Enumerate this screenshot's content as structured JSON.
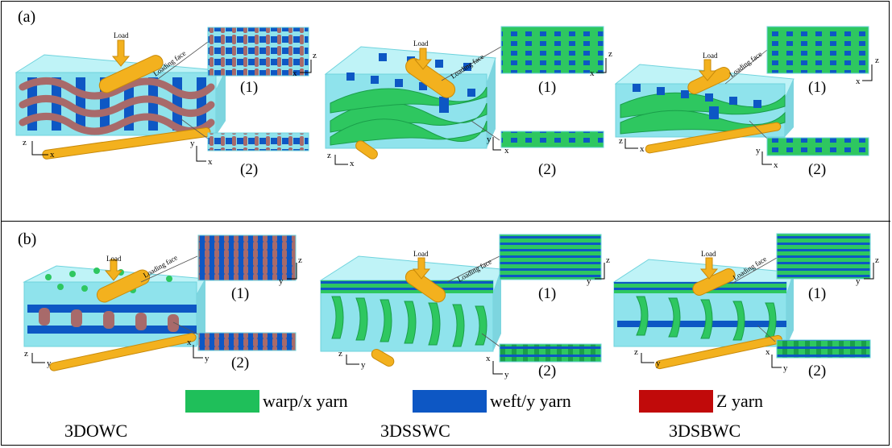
{
  "panels": [
    {
      "label": "(a)"
    },
    {
      "label": "(b)"
    }
  ],
  "figure_text": {
    "load": "Load",
    "loading_face": "Loading face",
    "view1": "(1)",
    "view2": "(2)",
    "axis_x": "x",
    "axis_y": "y",
    "axis_z": "z"
  },
  "legend": [
    {
      "label": "warp/x yarn",
      "color": "#1fbf5a"
    },
    {
      "label": "weft/y yarn",
      "color": "#0d57c4"
    },
    {
      "label": "Z yarn",
      "color": "#c10a0a"
    }
  ],
  "weave_labels": [
    "3DOWC",
    "3DSSWC",
    "3DSBWC"
  ],
  "colors": {
    "resin": "#8fe3ec",
    "cylinder": "#f3b11e",
    "z_yarn_render": "#a86a6a"
  }
}
